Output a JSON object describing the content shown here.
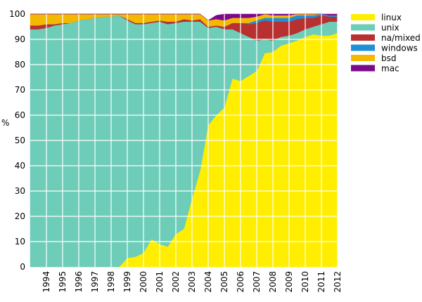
{
  "chart_data": {
    "type": "area",
    "stacked": true,
    "ylabel": "%",
    "xlabel": "",
    "title": "",
    "ylim": [
      0,
      100
    ],
    "xlim": [
      1993,
      2012
    ],
    "yticks": [
      0,
      10,
      20,
      30,
      40,
      50,
      60,
      70,
      80,
      90,
      100
    ],
    "ytick_labels": [
      "0",
      "10",
      "20",
      "30",
      "40",
      "50",
      "60",
      "70",
      "80",
      "90",
      "100"
    ],
    "xticks": [
      1994,
      1995,
      1996,
      1997,
      1998,
      1999,
      2000,
      2001,
      2002,
      2003,
      2004,
      2005,
      2006,
      2007,
      2008,
      2009,
      2010,
      2011,
      2012
    ],
    "xtick_labels": [
      "1994",
      "1995",
      "1996",
      "1997",
      "1998",
      "1999",
      "2000",
      "2001",
      "2002",
      "2003",
      "2004",
      "2005",
      "2006",
      "2007",
      "2008",
      "2009",
      "2010",
      "2011",
      "2012"
    ],
    "grid": true,
    "legend_position": "right",
    "x": [
      1993,
      1993.5,
      1994,
      1994.5,
      1995,
      1995.5,
      1996,
      1996.5,
      1997,
      1997.5,
      1998,
      1998.5,
      1999,
      1999.5,
      2000,
      2000.5,
      2001,
      2001.5,
      2002,
      2002.5,
      2003,
      2003.5,
      2004,
      2004.5,
      2005,
      2005.5,
      2006,
      2006.5,
      2007,
      2007.5,
      2008,
      2008.5,
      2009,
      2009.5,
      2010,
      2010.5,
      2011,
      2011.5,
      2012
    ],
    "series": [
      {
        "name": "linux",
        "color": "#ffee00",
        "values": [
          0,
          0,
          0,
          0,
          0,
          0,
          0,
          0,
          0,
          0,
          0,
          0,
          3.5,
          4,
          5.5,
          11,
          9,
          8,
          13,
          15,
          27,
          38,
          56,
          60,
          63,
          74.5,
          73.5,
          75.5,
          77.5,
          84.5,
          85,
          87.5,
          88.5,
          89.5,
          91,
          92,
          91.5,
          91.5,
          92.5
        ]
      },
      {
        "name": "unix",
        "color": "#6ecdb9",
        "values": [
          94,
          94,
          94.5,
          95.5,
          96,
          96.5,
          97.5,
          98,
          98.5,
          99,
          99,
          99.5,
          94,
          92,
          90.5,
          85.5,
          88,
          88,
          83.5,
          82,
          70,
          59,
          38.5,
          35,
          31,
          19.5,
          19,
          15.5,
          12,
          5.5,
          4.5,
          3.5,
          3,
          3,
          3,
          3,
          4.5,
          5.5,
          4.5
        ]
      },
      {
        "name": "na/mixed",
        "color": "#b83030",
        "values": [
          1.5,
          1.5,
          1.5,
          0.5,
          0.5,
          0,
          0,
          0,
          0,
          0,
          0,
          0,
          0.5,
          0.5,
          0.5,
          0.5,
          0.5,
          1,
          0.5,
          1,
          0.5,
          1,
          0.5,
          0.5,
          1,
          2.5,
          4,
          5,
          7,
          7.5,
          7.5,
          6,
          5.5,
          5.5,
          4.5,
          3.5,
          3.5,
          2,
          2
        ]
      },
      {
        "name": "windows",
        "color": "#1f8fd8",
        "values": [
          0,
          0,
          0,
          0,
          0,
          0,
          0,
          0,
          0,
          0,
          0,
          0,
          0,
          0,
          0,
          0,
          0,
          0,
          0,
          0,
          0,
          0,
          0,
          0,
          0,
          0,
          0,
          0.5,
          1,
          1,
          1.5,
          1.5,
          1.5,
          1.5,
          1,
          1,
          0.5,
          0.5,
          0.5
        ]
      },
      {
        "name": "bsd",
        "color": "#f5b800",
        "values": [
          4.5,
          4.5,
          4,
          4,
          3.5,
          3.5,
          2.5,
          2,
          1.5,
          1,
          1,
          0.5,
          2,
          3.5,
          3.5,
          3,
          2.5,
          3,
          3,
          2,
          2.5,
          2,
          2.5,
          2.5,
          2.5,
          2,
          2,
          2,
          1.5,
          1.5,
          1,
          1,
          1,
          0.5,
          0.5,
          0.5,
          0,
          0,
          0
        ]
      },
      {
        "name": "mac",
        "color": "#7b0a8a",
        "values": [
          0,
          0,
          0,
          0,
          0,
          0,
          0,
          0,
          0,
          0,
          0,
          0,
          0,
          0,
          0,
          0,
          0,
          0,
          0,
          0,
          0,
          0,
          0,
          1.5,
          2.5,
          1.5,
          1.5,
          1.5,
          1,
          0,
          0.5,
          0.5,
          0.5,
          0,
          0,
          0,
          0,
          0.5,
          0.5
        ]
      }
    ]
  }
}
